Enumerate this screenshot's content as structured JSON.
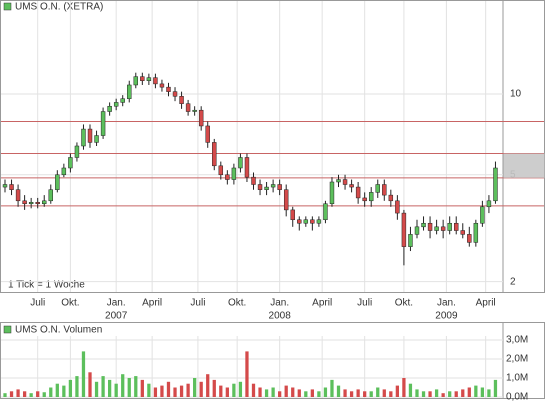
{
  "chart_data": [
    {
      "type": "candlestick",
      "title": "UMS O.N. (XETRA)",
      "annotation": "1 Tick = 1 Woche",
      "log_scale": true,
      "grid": true,
      "ylim": [
        1.83,
        22
      ],
      "yticks": [
        2,
        5,
        10
      ],
      "xlim": [
        0,
        152
      ],
      "xticks": [
        {
          "value": 10,
          "label": "Juli"
        },
        {
          "value": 20,
          "label": "Okt."
        },
        {
          "value": 34,
          "label": "Jan.",
          "year": "2007"
        },
        {
          "value": 45,
          "label": "April"
        },
        {
          "value": 59,
          "label": "Juli"
        },
        {
          "value": 71,
          "label": "Okt."
        },
        {
          "value": 84,
          "label": "Jan.",
          "year": "2008"
        },
        {
          "value": 97,
          "label": "April"
        },
        {
          "value": 110,
          "label": "Juli"
        },
        {
          "value": 122,
          "label": "Okt."
        },
        {
          "value": 135,
          "label": "Jan.",
          "year": "2009"
        },
        {
          "value": 147,
          "label": "April"
        }
      ],
      "up_color": "#5cbf5c",
      "down_color": "#d44a4a",
      "ref_lines": [
        7.9,
        6.0,
        4.87,
        3.83
      ],
      "ref_color": "#c86464",
      "highlight_band": [
        4.87,
        6.0
      ],
      "x": [
        0,
        2,
        4,
        6,
        8,
        10,
        12,
        14,
        16,
        18,
        20,
        22,
        24,
        26,
        28,
        30,
        32,
        34,
        36,
        38,
        40,
        42,
        44,
        46,
        48,
        50,
        52,
        54,
        56,
        58,
        60,
        62,
        64,
        66,
        68,
        70,
        72,
        74,
        76,
        78,
        80,
        82,
        84,
        86,
        88,
        90,
        92,
        94,
        96,
        98,
        100,
        102,
        104,
        106,
        108,
        110,
        112,
        114,
        116,
        118,
        120,
        122,
        124,
        126,
        128,
        130,
        132,
        134,
        136,
        138,
        140,
        142,
        144,
        146,
        148,
        150
      ],
      "open": [
        4.5,
        4.6,
        4.4,
        4.0,
        3.9,
        3.95,
        3.9,
        4.0,
        4.4,
        5.0,
        5.3,
        5.8,
        6.4,
        7.4,
        6.6,
        7.0,
        8.6,
        9.0,
        9.3,
        9.6,
        10.8,
        11.6,
        11.2,
        11.5,
        10.9,
        10.6,
        10.2,
        9.8,
        9.2,
        8.6,
        8.7,
        7.6,
        6.6,
        5.4,
        5.0,
        4.8,
        5.3,
        5.8,
        4.9,
        4.6,
        4.4,
        4.5,
        4.6,
        4.4,
        3.7,
        3.4,
        3.3,
        3.4,
        3.3,
        3.4,
        3.9,
        4.7,
        4.8,
        4.6,
        4.5,
        4.1,
        4.0,
        4.3,
        4.6,
        4.2,
        4.0,
        3.6,
        2.7,
        3.0,
        3.2,
        3.3,
        3.1,
        3.2,
        3.1,
        3.3,
        3.1,
        3.0,
        2.8,
        3.3,
        3.8,
        4.0
      ],
      "high": [
        4.8,
        4.8,
        4.6,
        4.2,
        4.1,
        4.1,
        4.2,
        4.6,
        5.2,
        5.5,
        6.0,
        6.6,
        7.7,
        7.7,
        7.3,
        8.9,
        9.3,
        9.6,
        9.9,
        11.2,
        12.0,
        12.0,
        11.9,
        11.9,
        11.3,
        11.0,
        10.6,
        10.2,
        9.5,
        9.0,
        9.0,
        7.9,
        6.8,
        5.6,
        5.2,
        5.5,
        6.0,
        6.0,
        5.1,
        4.8,
        4.7,
        4.8,
        4.8,
        4.6,
        3.8,
        3.5,
        3.5,
        3.5,
        3.5,
        4.0,
        4.9,
        5.0,
        5.0,
        4.8,
        4.7,
        4.3,
        4.5,
        4.8,
        4.8,
        4.4,
        4.2,
        3.7,
        3.2,
        3.4,
        3.5,
        3.5,
        3.4,
        3.4,
        3.5,
        3.5,
        3.3,
        3.2,
        3.4,
        4.0,
        4.2,
        5.6
      ],
      "low": [
        4.3,
        4.2,
        3.8,
        3.7,
        3.75,
        3.75,
        3.8,
        3.9,
        4.3,
        4.9,
        5.1,
        5.6,
        6.2,
        6.3,
        6.4,
        6.8,
        8.3,
        8.7,
        9.0,
        9.3,
        10.5,
        10.8,
        10.8,
        10.5,
        10.2,
        9.8,
        9.4,
        8.8,
        8.3,
        8.3,
        7.3,
        6.3,
        5.2,
        4.8,
        4.6,
        4.6,
        5.1,
        4.7,
        4.4,
        4.2,
        4.2,
        4.3,
        4.2,
        3.5,
        3.2,
        3.1,
        3.2,
        3.1,
        3.2,
        3.3,
        3.8,
        4.5,
        4.4,
        4.3,
        3.9,
        3.8,
        3.8,
        4.1,
        4.0,
        3.8,
        3.4,
        2.3,
        2.6,
        2.9,
        3.1,
        2.9,
        3.0,
        2.9,
        3.0,
        3.0,
        2.9,
        2.7,
        2.7,
        3.2,
        3.6,
        3.9
      ],
      "close": [
        4.6,
        4.4,
        4.0,
        3.9,
        3.95,
        3.9,
        4.0,
        4.4,
        5.0,
        5.3,
        5.8,
        6.4,
        7.4,
        6.6,
        7.0,
        8.6,
        9.0,
        9.3,
        9.6,
        10.8,
        11.6,
        11.2,
        11.5,
        10.9,
        10.6,
        10.2,
        9.8,
        9.2,
        8.6,
        8.7,
        7.6,
        6.6,
        5.4,
        5.0,
        4.8,
        5.3,
        5.8,
        4.9,
        4.6,
        4.4,
        4.5,
        4.6,
        4.4,
        3.7,
        3.4,
        3.3,
        3.4,
        3.3,
        3.4,
        3.9,
        4.7,
        4.8,
        4.6,
        4.5,
        4.1,
        4.0,
        4.3,
        4.6,
        4.2,
        4.0,
        3.6,
        2.7,
        3.0,
        3.2,
        3.3,
        3.1,
        3.2,
        3.1,
        3.3,
        3.1,
        3.0,
        2.8,
        3.3,
        3.8,
        4.0,
        5.3
      ]
    },
    {
      "type": "volume",
      "title": "UMS O.N. Volumen",
      "grid": true,
      "ylim": [
        0,
        3000000
      ],
      "yticks": [
        {
          "value": 0,
          "label": "0,0M"
        },
        {
          "value": 1000000,
          "label": "1,0M"
        },
        {
          "value": 2000000,
          "label": "2,0M"
        },
        {
          "value": 3000000,
          "label": "3,0M"
        }
      ],
      "values": [
        200000,
        300000,
        400000,
        300000,
        200000,
        300000,
        250000,
        500000,
        700000,
        600000,
        900000,
        1100000,
        2400000,
        1300000,
        800000,
        1100000,
        900000,
        700000,
        1200000,
        1000000,
        1100000,
        900000,
        700000,
        500000,
        600000,
        800000,
        500000,
        600000,
        700000,
        1000000,
        800000,
        1200000,
        900000,
        600000,
        500000,
        700000,
        800000,
        2400000,
        700000,
        500000,
        400000,
        500000,
        300000,
        600000,
        500000,
        400000,
        300000,
        400000,
        300000,
        500000,
        900000,
        600000,
        400000,
        300000,
        400000,
        300000,
        300000,
        500000,
        400000,
        300000,
        600000,
        1000000,
        700000,
        400000,
        300000,
        300000,
        400000,
        200000,
        300000,
        300000,
        400000,
        500000,
        600000,
        500000,
        400000,
        900000
      ]
    }
  ]
}
